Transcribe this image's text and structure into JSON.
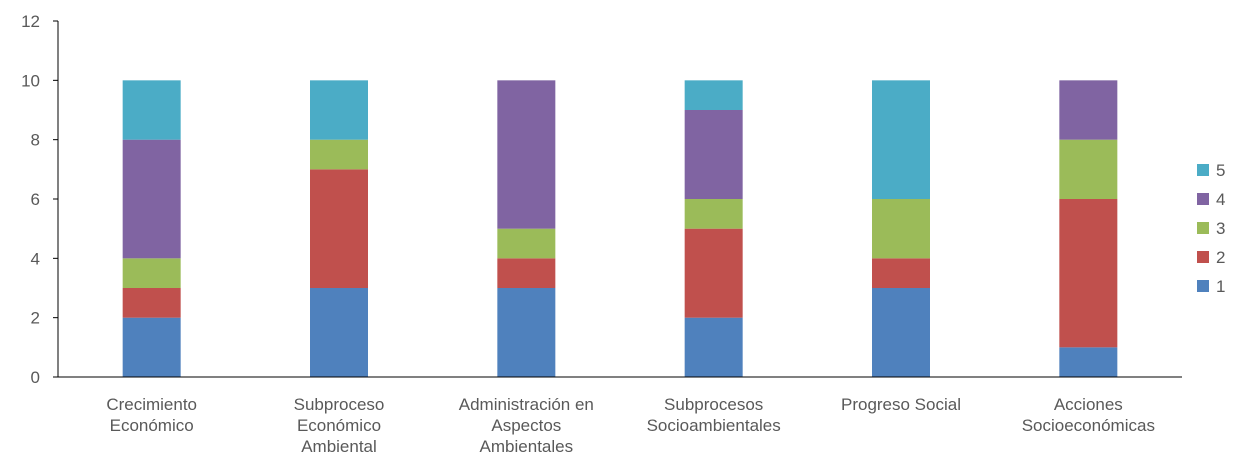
{
  "chart_data": {
    "type": "bar",
    "stacked": true,
    "categories": [
      [
        "Crecimiento",
        "Económico"
      ],
      [
        "Subproceso",
        "Económico",
        "Ambiental"
      ],
      [
        "Administración en",
        "Aspectos",
        "Ambientales"
      ],
      [
        "Subprocesos",
        "Socioambientales"
      ],
      [
        "Progreso Social"
      ],
      [
        "Acciones",
        "Socioeconómicas"
      ]
    ],
    "series": [
      {
        "name": "1",
        "color": "#4F81BD",
        "values": [
          2,
          3,
          3,
          2,
          3,
          1
        ]
      },
      {
        "name": "2",
        "color": "#C0504D",
        "values": [
          1,
          4,
          1,
          3,
          1,
          5
        ]
      },
      {
        "name": "3",
        "color": "#9BBB59",
        "values": [
          1,
          1,
          1,
          1,
          2,
          2
        ]
      },
      {
        "name": "4",
        "color": "#8064A2",
        "values": [
          4,
          0,
          5,
          3,
          0,
          2
        ]
      },
      {
        "name": "5",
        "color": "#4BACC6",
        "values": [
          2,
          2,
          0,
          1,
          4,
          0
        ]
      }
    ],
    "ylim": [
      0,
      12
    ],
    "yticks": [
      0,
      2,
      4,
      6,
      8,
      10,
      12
    ],
    "grid": false,
    "legend_position": "right",
    "legend_order": "reversed",
    "title": "",
    "xlabel": "",
    "ylabel": ""
  }
}
